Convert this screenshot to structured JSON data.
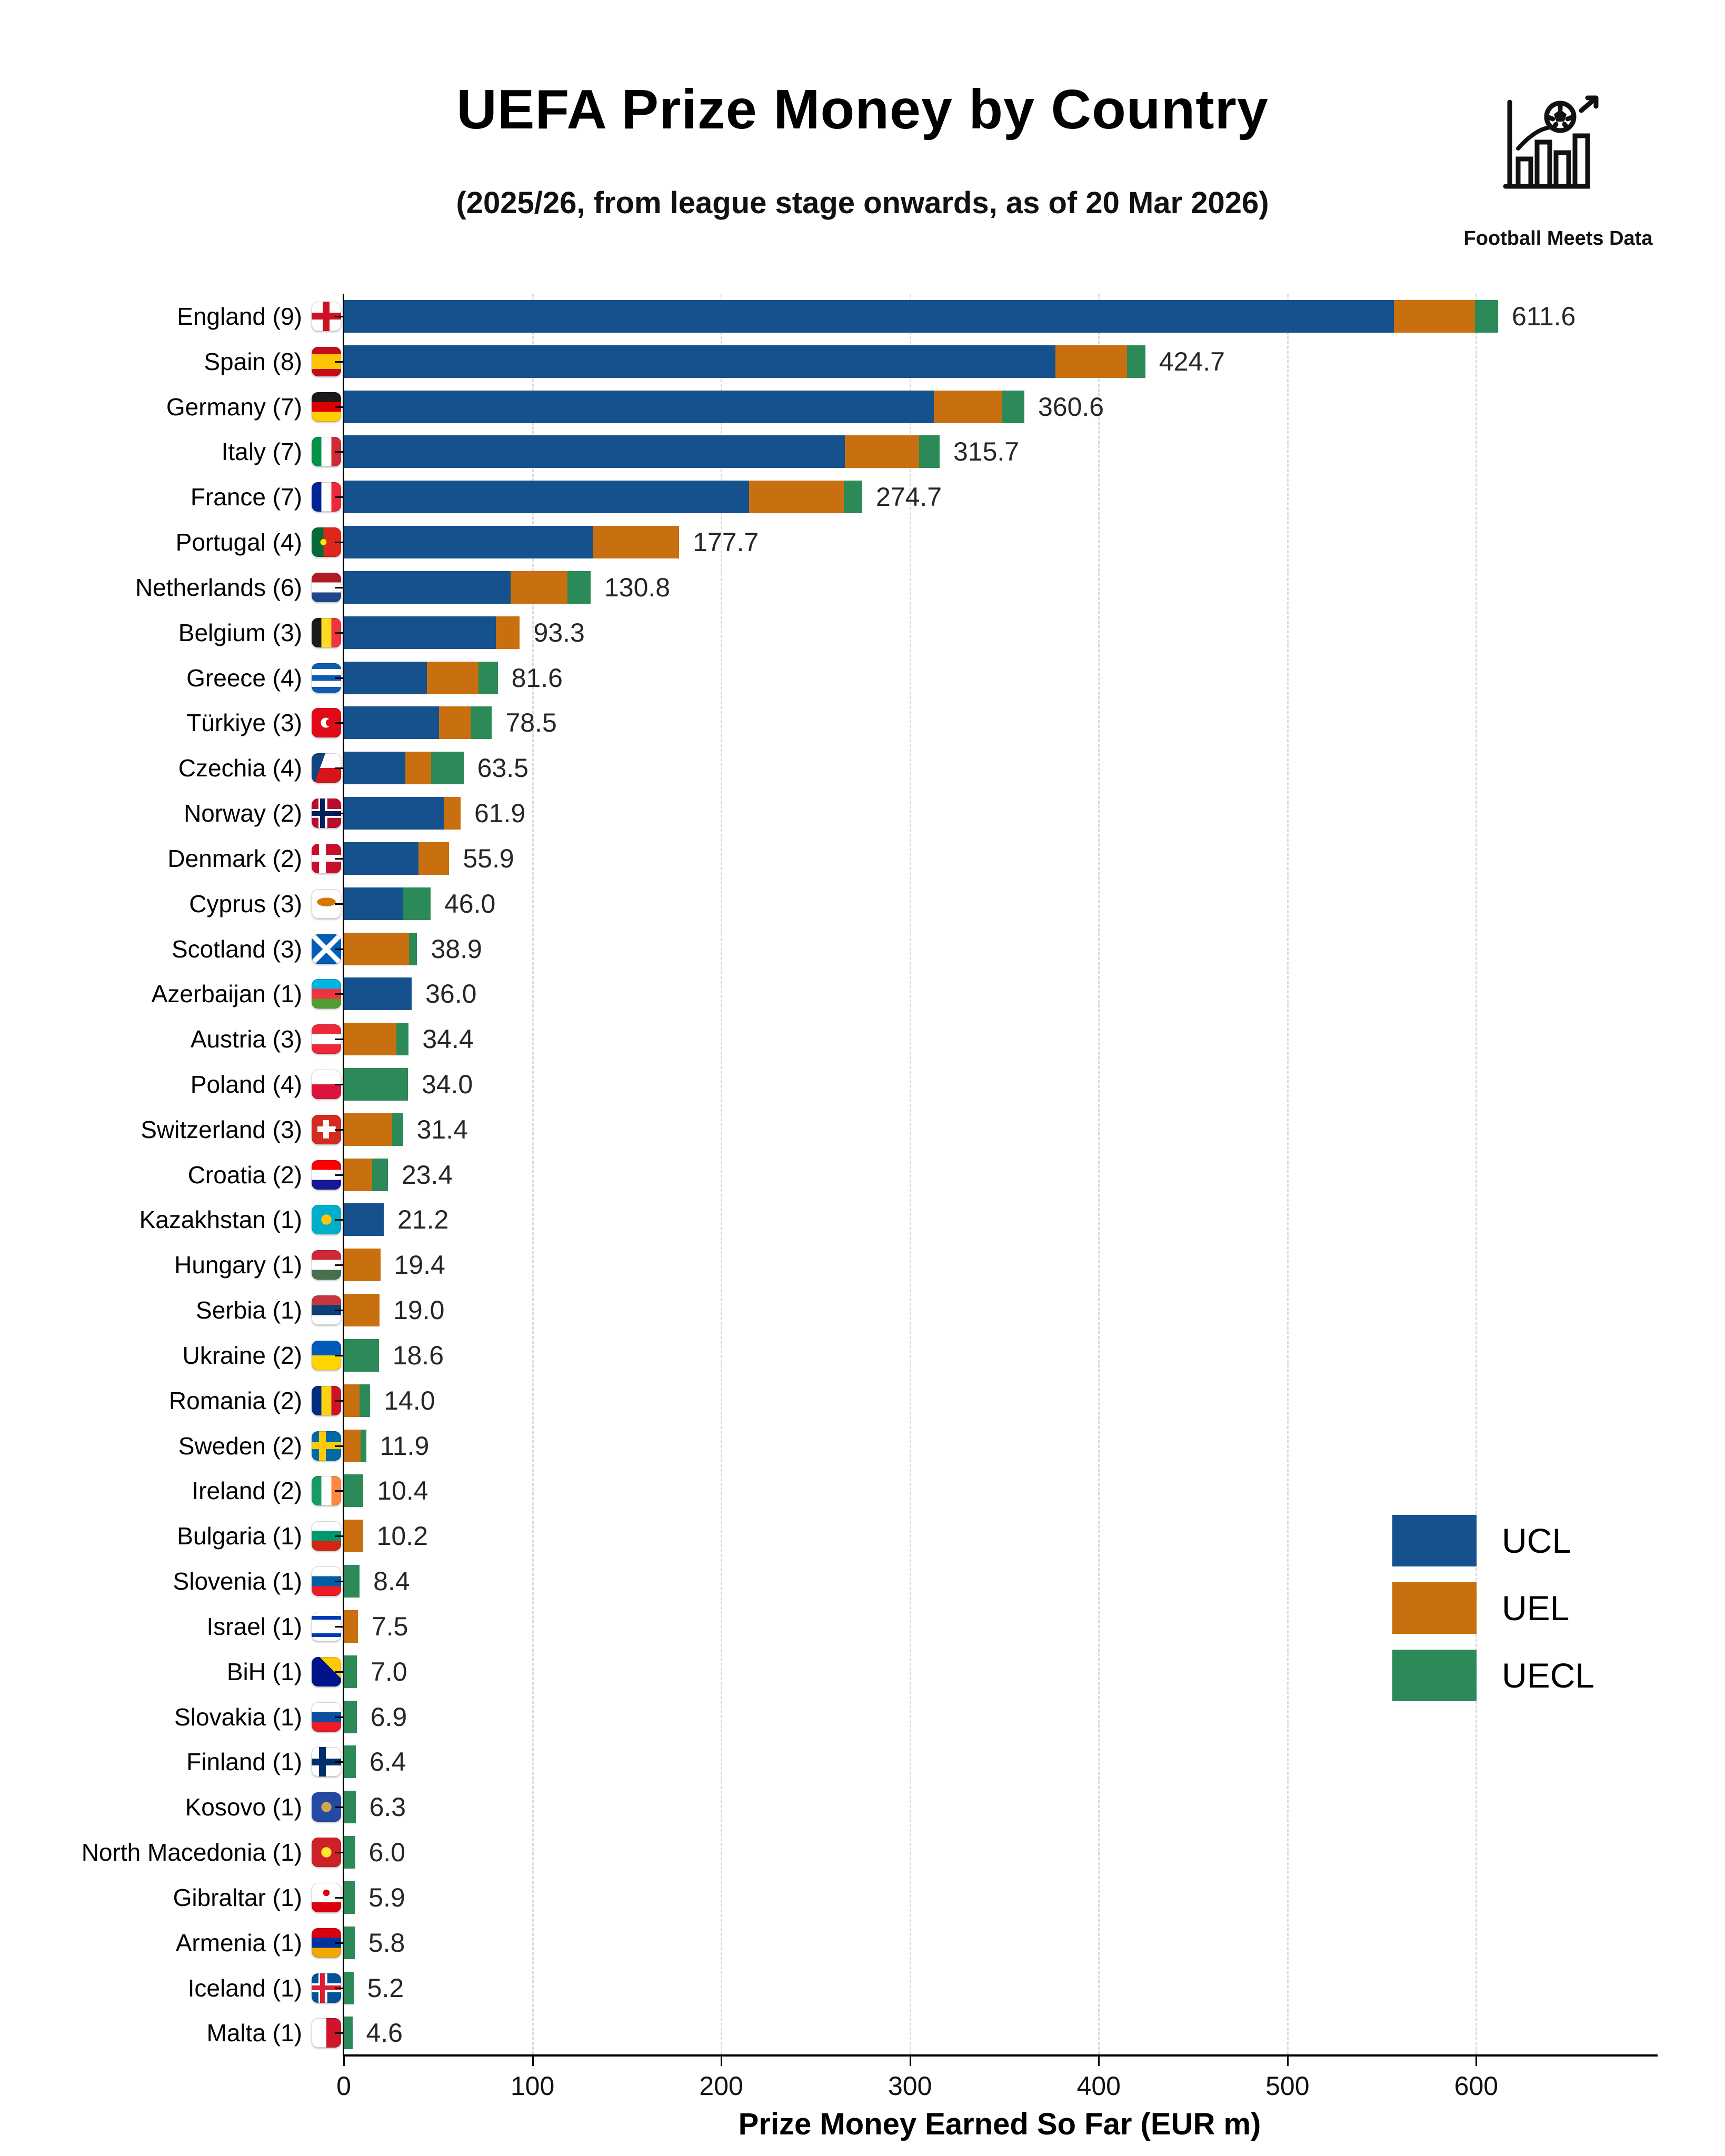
{
  "title": "UEFA Prize Money by Country",
  "subtitle": "(2025/26, from league stage onwards, as of 20 Mar 2026)",
  "brand": "Football Meets Data",
  "xlabel": "Prize Money Earned So Far (EUR m)",
  "legend": [
    {
      "label": "UCL",
      "color": "#15518C"
    },
    {
      "label": "UEL",
      "color": "#C8700F"
    },
    {
      "label": "UECL",
      "color": "#2B8A57"
    }
  ],
  "colors": {
    "ucl": "#15518C",
    "uel": "#C8700F",
    "uecl": "#2B8A57"
  },
  "chart_data": {
    "type": "bar",
    "orientation": "horizontal",
    "stacked": true,
    "title": "UEFA Prize Money by Country",
    "xlabel": "Prize Money Earned So Far (EUR m)",
    "xlim": [
      0,
      695
    ],
    "xticks": [
      0,
      100,
      200,
      300,
      400,
      500,
      600
    ],
    "grid": "dashed-vertical",
    "legend_position": "center-right",
    "series_names": [
      "UCL",
      "UEL",
      "UECL"
    ],
    "rows": [
      {
        "country": "England",
        "clubs": 9,
        "total": 611.6,
        "ucl": 556.4,
        "uel": 43.0,
        "uecl": 12.2,
        "flag": {
          "type": "cross",
          "colors": [
            "#ffffff",
            "#ce1124"
          ]
        }
      },
      {
        "country": "Spain",
        "clubs": 8,
        "total": 424.7,
        "ucl": 377.0,
        "uel": 38.0,
        "uecl": 9.7,
        "flag": {
          "type": "spain",
          "colors": [
            "#c60b1e",
            "#ffc400"
          ]
        }
      },
      {
        "country": "Germany",
        "clubs": 7,
        "total": 360.6,
        "ucl": 312.6,
        "uel": 36.4,
        "uecl": 11.6,
        "flag": {
          "type": "h",
          "colors": [
            "#1a1a1a",
            "#dd0000",
            "#ffce00"
          ]
        }
      },
      {
        "country": "Italy",
        "clubs": 7,
        "total": 315.7,
        "ucl": 265.4,
        "uel": 39.5,
        "uecl": 10.8,
        "flag": {
          "type": "v",
          "colors": [
            "#009246",
            "#ffffff",
            "#ce2b37"
          ]
        }
      },
      {
        "country": "France",
        "clubs": 7,
        "total": 274.7,
        "ucl": 214.8,
        "uel": 50.2,
        "uecl": 9.7,
        "flag": {
          "type": "v",
          "colors": [
            "#002395",
            "#ffffff",
            "#ed2939"
          ]
        }
      },
      {
        "country": "Portugal",
        "clubs": 4,
        "total": 177.7,
        "ucl": 132.0,
        "uel": 45.7,
        "uecl": 0,
        "flag": {
          "type": "portugal",
          "colors": [
            "#046a38",
            "#da291c",
            "#ffe900"
          ]
        }
      },
      {
        "country": "Netherlands",
        "clubs": 6,
        "total": 130.8,
        "ucl": 88.5,
        "uel": 29.9,
        "uecl": 12.4,
        "flag": {
          "type": "h",
          "colors": [
            "#ae1c28",
            "#ffffff",
            "#21468b"
          ]
        }
      },
      {
        "country": "Belgium",
        "clubs": 3,
        "total": 93.3,
        "ucl": 80.5,
        "uel": 12.8,
        "uecl": 0,
        "flag": {
          "type": "v",
          "colors": [
            "#1a1a1a",
            "#fdda24",
            "#ef3340"
          ]
        }
      },
      {
        "country": "Greece",
        "clubs": 4,
        "total": 81.6,
        "ucl": 44.1,
        "uel": 27.2,
        "uecl": 10.3,
        "flag": {
          "type": "greece",
          "colors": [
            "#0d5eaf",
            "#ffffff"
          ]
        }
      },
      {
        "country": "Türkiye",
        "clubs": 3,
        "total": 78.5,
        "ucl": 50.6,
        "uel": 16.5,
        "uecl": 11.4,
        "flag": {
          "type": "crescent",
          "colors": [
            "#e30a17",
            "#ffffff"
          ]
        }
      },
      {
        "country": "Czechia",
        "clubs": 4,
        "total": 63.5,
        "ucl": 32.6,
        "uel": 13.8,
        "uecl": 17.1,
        "flag": {
          "type": "czech",
          "colors": [
            "#ffffff",
            "#d7141a",
            "#11457e"
          ]
        }
      },
      {
        "country": "Norway",
        "clubs": 2,
        "total": 61.9,
        "ucl": 53.3,
        "uel": 8.6,
        "uecl": 0,
        "flag": {
          "type": "nordic3",
          "colors": [
            "#ba0c2f",
            "#ffffff",
            "#00205b"
          ]
        }
      },
      {
        "country": "Denmark",
        "clubs": 2,
        "total": 55.9,
        "ucl": 39.5,
        "uel": 16.4,
        "uecl": 0,
        "flag": {
          "type": "nordic",
          "colors": [
            "#c8102e",
            "#ffffff"
          ]
        }
      },
      {
        "country": "Cyprus",
        "clubs": 3,
        "total": 46.0,
        "ucl": 31.5,
        "uel": 0,
        "uecl": 14.5,
        "flag": {
          "type": "cyprus",
          "colors": [
            "#ffffff",
            "#d57800"
          ]
        }
      },
      {
        "country": "Scotland",
        "clubs": 3,
        "total": 38.9,
        "ucl": 0,
        "uel": 34.5,
        "uecl": 4.4,
        "flag": {
          "type": "saltire",
          "colors": [
            "#005eb8",
            "#ffffff"
          ]
        }
      },
      {
        "country": "Azerbaijan",
        "clubs": 1,
        "total": 36.0,
        "ucl": 36.0,
        "uel": 0,
        "uecl": 0,
        "flag": {
          "type": "h",
          "colors": [
            "#00b5e2",
            "#ef3340",
            "#509e2f"
          ]
        }
      },
      {
        "country": "Austria",
        "clubs": 3,
        "total": 34.4,
        "ucl": 0,
        "uel": 28.0,
        "uecl": 6.4,
        "flag": {
          "type": "h",
          "colors": [
            "#ed2939",
            "#ffffff",
            "#ed2939"
          ]
        }
      },
      {
        "country": "Poland",
        "clubs": 4,
        "total": 34.0,
        "ucl": 0,
        "uel": 0,
        "uecl": 34.0,
        "flag": {
          "type": "h",
          "colors": [
            "#ffffff",
            "#dc143c"
          ]
        }
      },
      {
        "country": "Switzerland",
        "clubs": 3,
        "total": 31.4,
        "ucl": 0,
        "uel": 25.7,
        "uecl": 5.7,
        "flag": {
          "type": "plus",
          "colors": [
            "#d52b1e",
            "#ffffff"
          ]
        }
      },
      {
        "country": "Croatia",
        "clubs": 2,
        "total": 23.4,
        "ucl": 0,
        "uel": 15.0,
        "uecl": 8.4,
        "flag": {
          "type": "h",
          "colors": [
            "#ff0000",
            "#ffffff",
            "#171796"
          ]
        }
      },
      {
        "country": "Kazakhstan",
        "clubs": 1,
        "total": 21.2,
        "ucl": 21.2,
        "uel": 0,
        "uecl": 0,
        "flag": {
          "type": "sun",
          "colors": [
            "#00afca",
            "#fec50c"
          ]
        }
      },
      {
        "country": "Hungary",
        "clubs": 1,
        "total": 19.4,
        "ucl": 0,
        "uel": 19.4,
        "uecl": 0,
        "flag": {
          "type": "h",
          "colors": [
            "#ce2939",
            "#ffffff",
            "#477050"
          ]
        }
      },
      {
        "country": "Serbia",
        "clubs": 1,
        "total": 19.0,
        "ucl": 0,
        "uel": 19.0,
        "uecl": 0,
        "flag": {
          "type": "h",
          "colors": [
            "#c6363c",
            "#0c4076",
            "#ffffff"
          ]
        }
      },
      {
        "country": "Ukraine",
        "clubs": 2,
        "total": 18.6,
        "ucl": 0,
        "uel": 0,
        "uecl": 18.6,
        "flag": {
          "type": "h",
          "colors": [
            "#005bbb",
            "#ffd500"
          ]
        }
      },
      {
        "country": "Romania",
        "clubs": 2,
        "total": 14.0,
        "ucl": 0,
        "uel": 8.5,
        "uecl": 5.5,
        "flag": {
          "type": "v",
          "colors": [
            "#002b7f",
            "#fcd116",
            "#ce1126"
          ]
        }
      },
      {
        "country": "Sweden",
        "clubs": 2,
        "total": 11.9,
        "ucl": 0,
        "uel": 9.0,
        "uecl": 2.9,
        "flag": {
          "type": "nordic",
          "colors": [
            "#006aa7",
            "#fecc02"
          ]
        }
      },
      {
        "country": "Ireland",
        "clubs": 2,
        "total": 10.4,
        "ucl": 0,
        "uel": 0,
        "uecl": 10.4,
        "flag": {
          "type": "v",
          "colors": [
            "#169b62",
            "#ffffff",
            "#ff883e"
          ]
        }
      },
      {
        "country": "Bulgaria",
        "clubs": 1,
        "total": 10.2,
        "ucl": 0,
        "uel": 10.2,
        "uecl": 0,
        "flag": {
          "type": "h",
          "colors": [
            "#ffffff",
            "#00966e",
            "#d62612"
          ]
        }
      },
      {
        "country": "Slovenia",
        "clubs": 1,
        "total": 8.4,
        "ucl": 0,
        "uel": 0,
        "uecl": 8.4,
        "flag": {
          "type": "h",
          "colors": [
            "#ffffff",
            "#005da4",
            "#ed1c24"
          ]
        }
      },
      {
        "country": "Israel",
        "clubs": 1,
        "total": 7.5,
        "ucl": 0,
        "uel": 7.5,
        "uecl": 0,
        "flag": {
          "type": "israel",
          "colors": [
            "#ffffff",
            "#0038b8"
          ]
        }
      },
      {
        "country": "BiH",
        "clubs": 1,
        "total": 7.0,
        "ucl": 0,
        "uel": 0,
        "uecl": 7.0,
        "flag": {
          "type": "bih",
          "colors": [
            "#001489",
            "#fecb00"
          ]
        }
      },
      {
        "country": "Slovakia",
        "clubs": 1,
        "total": 6.9,
        "ucl": 0,
        "uel": 0,
        "uecl": 6.9,
        "flag": {
          "type": "h",
          "colors": [
            "#ffffff",
            "#0b4ea2",
            "#ee1c25"
          ]
        }
      },
      {
        "country": "Finland",
        "clubs": 1,
        "total": 6.4,
        "ucl": 0,
        "uel": 0,
        "uecl": 6.4,
        "flag": {
          "type": "nordic",
          "colors": [
            "#ffffff",
            "#002f6c"
          ]
        }
      },
      {
        "country": "Kosovo",
        "clubs": 1,
        "total": 6.3,
        "ucl": 0,
        "uel": 0,
        "uecl": 6.3,
        "flag": {
          "type": "sun",
          "colors": [
            "#244aa5",
            "#d0a650"
          ]
        }
      },
      {
        "country": "North Macedonia",
        "clubs": 1,
        "total": 6.0,
        "ucl": 0,
        "uel": 0,
        "uecl": 6.0,
        "flag": {
          "type": "sun",
          "colors": [
            "#ce2028",
            "#f8e92e"
          ]
        }
      },
      {
        "country": "Gibraltar",
        "clubs": 1,
        "total": 5.9,
        "ucl": 0,
        "uel": 0,
        "uecl": 5.9,
        "flag": {
          "type": "gibraltar",
          "colors": [
            "#ffffff",
            "#da000c"
          ]
        }
      },
      {
        "country": "Armenia",
        "clubs": 1,
        "total": 5.8,
        "ucl": 0,
        "uel": 0,
        "uecl": 5.8,
        "flag": {
          "type": "h",
          "colors": [
            "#d90012",
            "#0033a0",
            "#f2a800"
          ]
        }
      },
      {
        "country": "Iceland",
        "clubs": 1,
        "total": 5.2,
        "ucl": 0,
        "uel": 0,
        "uecl": 5.2,
        "flag": {
          "type": "nordic3",
          "colors": [
            "#02529c",
            "#ffffff",
            "#dc1e35"
          ]
        }
      },
      {
        "country": "Malta",
        "clubs": 1,
        "total": 4.6,
        "ucl": 0,
        "uel": 0,
        "uecl": 4.6,
        "flag": {
          "type": "v",
          "colors": [
            "#ffffff",
            "#cf142b"
          ]
        }
      }
    ]
  }
}
